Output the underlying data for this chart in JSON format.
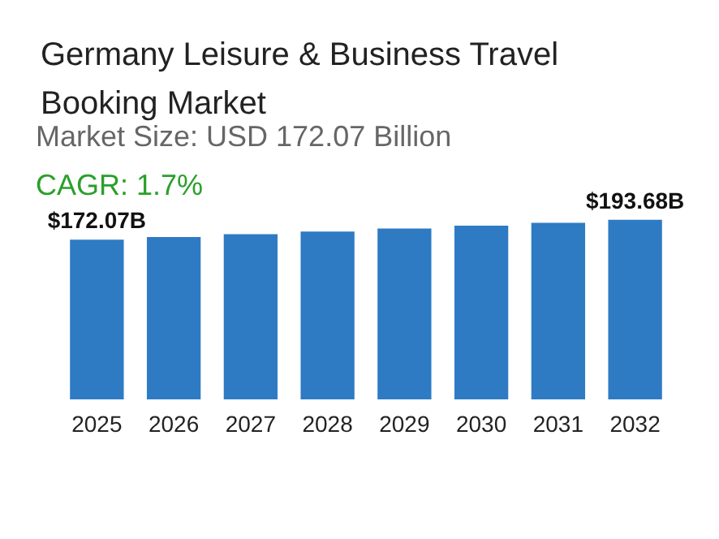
{
  "chart_data": {
    "type": "bar",
    "title": "Germany Leisure & Business Travel Booking Market",
    "subtitle": "Market Size: USD 172.07 Billion",
    "annotations": [
      "CAGR: 1.7%"
    ],
    "categories": [
      "2025",
      "2026",
      "2027",
      "2028",
      "2029",
      "2030",
      "2031",
      "2032"
    ],
    "values": [
      172.07,
      175.0,
      178.0,
      181.0,
      184.1,
      187.2,
      190.4,
      193.68
    ],
    "value_labels": [
      "$172.07B",
      null,
      null,
      null,
      null,
      null,
      null,
      "$193.68B"
    ],
    "color": "#2e7bc4"
  }
}
